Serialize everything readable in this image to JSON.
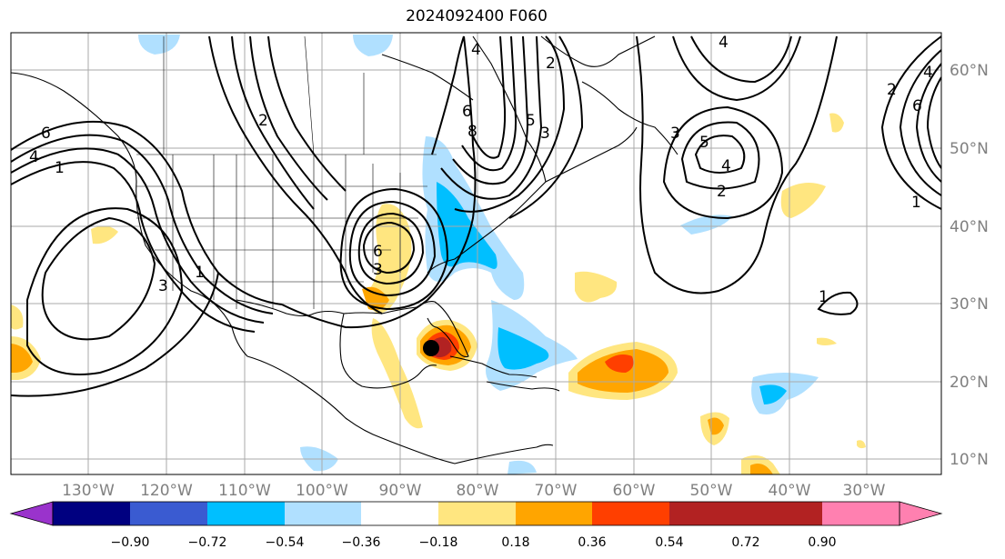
{
  "title": "2024092400 F060",
  "map": {
    "lon_ticks": [
      "130°W",
      "120°W",
      "110°W",
      "100°W",
      "90°W",
      "80°W",
      "70°W",
      "60°W",
      "50°W",
      "40°W",
      "30°W"
    ],
    "lat_ticks": [
      "10°N",
      "20°N",
      "30°N",
      "40°N",
      "50°N",
      "60°N"
    ],
    "gridline_color": "#aaaaaa",
    "contour_labels": [
      "4",
      "6",
      "1",
      "2",
      "3",
      "1",
      "4",
      "6",
      "8",
      "3",
      "2",
      "4",
      "5",
      "3",
      "6",
      "1",
      "3",
      "4",
      "5",
      "2",
      "6",
      "4",
      "2",
      "1"
    ]
  },
  "colorbar": {
    "labels": [
      "−0.90",
      "−0.72",
      "−0.54",
      "−0.36",
      "−0.18",
      "0.18",
      "0.36",
      "0.54",
      "0.72",
      "0.90"
    ],
    "colors": [
      "#9a33cc",
      "#000080",
      "#3a5bd1",
      "#00bfff",
      "#b0e0ff",
      "#ffffff",
      "#ffe680",
      "#ffa500",
      "#ff3f00",
      "#b22222",
      "#ff80b0"
    ]
  },
  "storm_marker": {
    "label": "storm-center",
    "color": "#000000"
  }
}
